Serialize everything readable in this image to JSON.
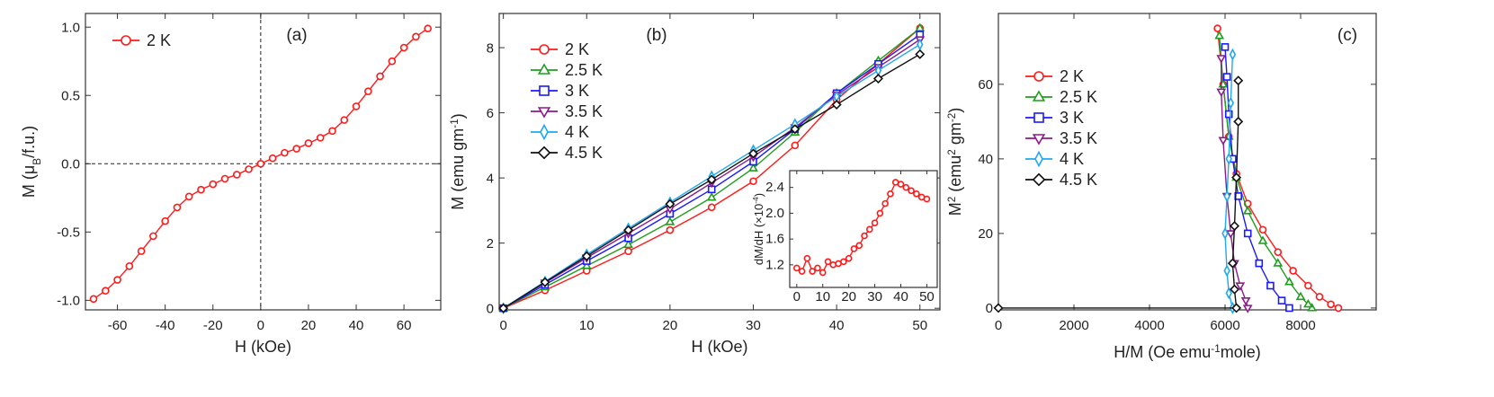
{
  "chart_data": [
    {
      "type": "line",
      "panel_label": "(a)",
      "zero_lines": true,
      "x_label": [
        {
          "text": "H (kOe)"
        }
      ],
      "y_label": [
        {
          "text": "M (μ"
        },
        {
          "text": "B",
          "shift": "sub"
        },
        {
          "text": "/f.u.)"
        }
      ],
      "xlim": [
        -73.4,
        75.4
      ],
      "ylim": [
        -1.07,
        1.1
      ],
      "xticks": [
        -60,
        -40,
        -20,
        0,
        20,
        40,
        60
      ],
      "yticks": [
        {
          "value": -1,
          "label": "-1.0"
        },
        -0.5,
        {
          "value": 0,
          "label": "0.0"
        },
        0.5,
        {
          "value": 1,
          "label": "1.0"
        }
      ],
      "series": [
        {
          "name": "2 K",
          "color": "#ff1a1a",
          "marker": "circle",
          "x": [
            -70,
            -65,
            -60,
            -55,
            -50,
            -45,
            -40,
            -35,
            -30,
            -25,
            -20,
            -15,
            -10,
            -5,
            0,
            5,
            10,
            15,
            20,
            25,
            30,
            35,
            40,
            45,
            50,
            55,
            60,
            65,
            70
          ],
          "values": [
            -0.99,
            -0.93,
            -0.85,
            -0.75,
            -0.64,
            -0.53,
            -0.42,
            -0.32,
            -0.24,
            -0.19,
            -0.15,
            -0.11,
            -0.08,
            -0.04,
            0,
            0.04,
            0.08,
            0.11,
            0.15,
            0.19,
            0.24,
            0.32,
            0.42,
            0.53,
            0.64,
            0.75,
            0.85,
            0.93,
            0.99
          ]
        }
      ]
    },
    {
      "type": "line",
      "panel_label": "(b)",
      "x_label": [
        {
          "text": "H (kOe)"
        }
      ],
      "y_label": [
        {
          "text": "M (emu gm"
        },
        {
          "text": "-1",
          "shift": "sup"
        },
        {
          "text": ")"
        }
      ],
      "xlim": [
        -0.5,
        52.4
      ],
      "ylim": [
        -0.05,
        9.05
      ],
      "xticks": [
        0,
        10,
        20,
        30,
        40,
        50
      ],
      "yticks": [
        0,
        2,
        4,
        6,
        8
      ],
      "x": [
        0,
        5,
        10,
        15,
        20,
        25,
        30,
        35,
        40,
        45,
        50
      ],
      "series": [
        {
          "name": "2 K",
          "color": "#ff1a1a",
          "marker": "circle",
          "values": [
            0,
            0.55,
            1.15,
            1.75,
            2.4,
            3.1,
            3.9,
            5.0,
            6.4,
            7.5,
            8.6
          ]
        },
        {
          "name": "2.5 K",
          "color": "#1f9e1f",
          "marker": "triangle-up",
          "values": [
            0,
            0.65,
            1.3,
            1.95,
            2.65,
            3.4,
            4.3,
            5.4,
            6.6,
            7.6,
            8.6
          ]
        },
        {
          "name": "3 K",
          "color": "#1a1aff",
          "marker": "square",
          "values": [
            0,
            0.72,
            1.45,
            2.15,
            2.9,
            3.65,
            4.5,
            5.5,
            6.6,
            7.5,
            8.4
          ]
        },
        {
          "name": "3.5 K",
          "color": "#8b1a8b",
          "marker": "triangle-down",
          "values": [
            0,
            0.78,
            1.55,
            2.3,
            3.05,
            3.85,
            4.65,
            5.55,
            6.55,
            7.4,
            8.25
          ]
        },
        {
          "name": "4 K",
          "color": "#1fa8f0",
          "marker": "diamond-tall",
          "values": [
            0,
            0.82,
            1.65,
            2.45,
            3.25,
            4.05,
            4.85,
            5.65,
            6.5,
            7.3,
            8.1
          ]
        },
        {
          "name": "4.5 K",
          "color": "#111111",
          "marker": "diamond",
          "values": [
            0,
            0.8,
            1.6,
            2.4,
            3.2,
            3.95,
            4.75,
            5.5,
            6.25,
            7.05,
            7.8
          ]
        }
      ]
    },
    {
      "type": "line",
      "y_label": [
        {
          "text": "dM/dH (×10"
        },
        {
          "text": "-4",
          "shift": "sup"
        },
        {
          "text": ")"
        }
      ],
      "xlim": [
        -2.7,
        54
      ],
      "ylim": [
        0.85,
        2.66
      ],
      "xticks": [
        0,
        10,
        20,
        30,
        40,
        50
      ],
      "yticks": [
        1.2,
        1.6,
        {
          "value": 2,
          "label": "2.0"
        },
        2.4
      ],
      "x": [
        0,
        2,
        4,
        6,
        8,
        10,
        12,
        14,
        16,
        18,
        20,
        22,
        24,
        26,
        28,
        30,
        32,
        34,
        36,
        38,
        40,
        42,
        44,
        46,
        48,
        50
      ],
      "series": [
        {
          "color": "#ff1a1a",
          "marker": "circle",
          "values": [
            1.15,
            1.1,
            1.3,
            1.1,
            1.15,
            1.08,
            1.25,
            1.2,
            1.22,
            1.25,
            1.3,
            1.45,
            1.5,
            1.65,
            1.75,
            1.85,
            2.0,
            2.15,
            2.3,
            2.48,
            2.45,
            2.4,
            2.35,
            2.3,
            2.25,
            2.22
          ]
        }
      ]
    },
    {
      "type": "line",
      "panel_label": "(c)",
      "x_label": [
        {
          "text": "H/M (Oe emu"
        },
        {
          "text": "-1",
          "shift": "sup"
        },
        {
          "text": "mole)"
        }
      ],
      "y_label": [
        {
          "text": "M"
        },
        {
          "text": "2",
          "shift": "sup"
        },
        {
          "text": " (emu"
        },
        {
          "text": "2",
          "shift": "sup"
        },
        {
          "text": " gm"
        },
        {
          "text": "-2",
          "shift": "sup"
        },
        {
          "text": ")"
        }
      ],
      "xlim": [
        0,
        10000
      ],
      "ylim": [
        -0.5,
        79
      ],
      "xticks": [
        0,
        2000,
        4000,
        6000,
        8000
      ],
      "yticks": [
        0,
        20,
        40,
        60
      ],
      "series": [
        {
          "name": "2 K",
          "color": "#ff1a1a",
          "marker": "circle",
          "x": [
            9000,
            8800,
            8500,
            8200,
            7800,
            7400,
            7000,
            6600,
            6300,
            6100,
            5950,
            5800
          ],
          "values": [
            0,
            1,
            3,
            6,
            10,
            15,
            21,
            28,
            36,
            46,
            60,
            75
          ]
        },
        {
          "name": "2.5 K",
          "color": "#1f9e1f",
          "marker": "triangle-up",
          "x": [
            8300,
            8200,
            8000,
            7700,
            7400,
            7000,
            6600,
            6300,
            6100,
            5950,
            5850
          ],
          "values": [
            0,
            1,
            3,
            7,
            12,
            18,
            26,
            35,
            46,
            60,
            73
          ]
        },
        {
          "name": "3 K",
          "color": "#1a1aff",
          "marker": "square",
          "x": [
            7700,
            7500,
            7200,
            6900,
            6600,
            6350,
            6200,
            6100,
            6050,
            6000
          ],
          "values": [
            0,
            2,
            6,
            12,
            20,
            30,
            40,
            52,
            62,
            70
          ]
        },
        {
          "name": "3.5 K",
          "color": "#8b1a8b",
          "marker": "triangle-down",
          "x": [
            6600,
            6550,
            6400,
            6250,
            6150,
            6050,
            5950,
            5900,
            5900
          ],
          "values": [
            0,
            2,
            6,
            12,
            20,
            30,
            45,
            58,
            67
          ]
        },
        {
          "name": "4 K",
          "color": "#1fa8f0",
          "marker": "diamond-tall",
          "x": [
            6200,
            6100,
            6050,
            6000,
            6050,
            6100,
            6150,
            6200
          ],
          "values": [
            0,
            4,
            10,
            20,
            30,
            40,
            55,
            68
          ]
        },
        {
          "name": "4.5 K",
          "color": "#111111",
          "marker": "diamond",
          "x": [
            0,
            6300,
            6250,
            6200,
            6250,
            6300,
            6350,
            6350
          ],
          "values": [
            0,
            0,
            5,
            12,
            22,
            35,
            50,
            61
          ]
        }
      ]
    }
  ]
}
